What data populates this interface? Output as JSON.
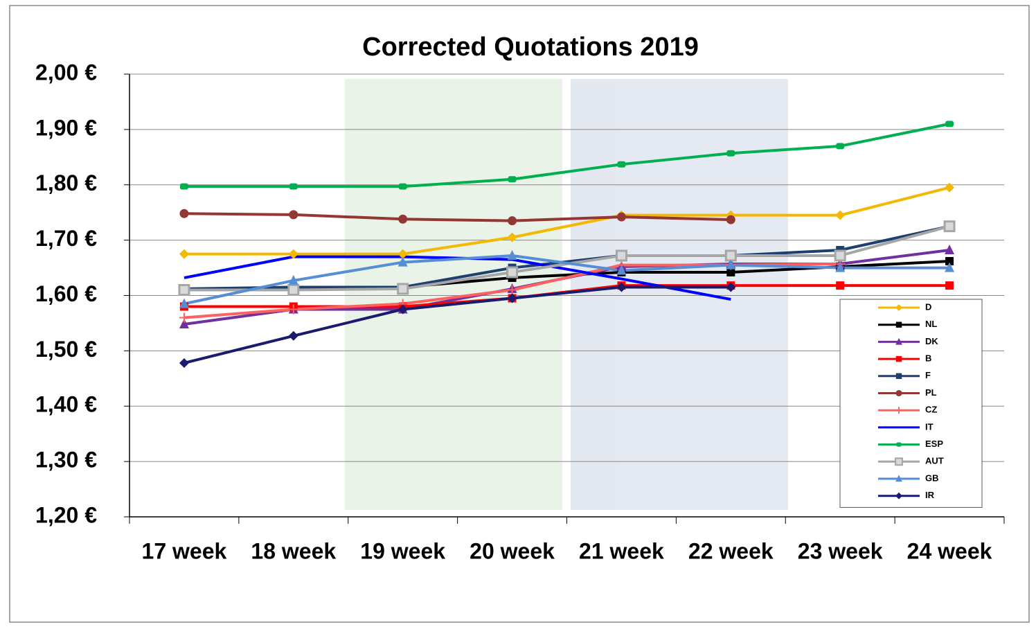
{
  "chart_data": {
    "type": "line",
    "title": "Corrected Quotations 2019",
    "categories": [
      "17 week",
      "18 week",
      "19 week",
      "20 week",
      "21 week",
      "22 week",
      "23 week",
      "24 week"
    ],
    "ylim": [
      1.2,
      2.0
    ],
    "yticks": [
      {
        "value": 1.2,
        "label": "1,20 €"
      },
      {
        "value": 1.3,
        "label": "1,30 €"
      },
      {
        "value": 1.4,
        "label": "1,40 €"
      },
      {
        "value": 1.5,
        "label": "1,50 €"
      },
      {
        "value": 1.6,
        "label": "1,60 €"
      },
      {
        "value": 1.7,
        "label": "1,70 €"
      },
      {
        "value": 1.8,
        "label": "1,80 €"
      },
      {
        "value": 1.9,
        "label": "1,90 €"
      },
      {
        "value": 2.0,
        "label": "2,00 €"
      }
    ],
    "grid": true,
    "legend": "lower right",
    "series": [
      {
        "name": "D",
        "color": "#f5b800",
        "marker": "diamond",
        "values": [
          1.675,
          1.675,
          1.675,
          1.705,
          1.745,
          1.745,
          1.745,
          1.795
        ]
      },
      {
        "name": "NL",
        "color": "#000000",
        "marker": "square",
        "values": [
          1.61,
          1.615,
          1.615,
          1.632,
          1.642,
          1.642,
          1.652,
          1.662
        ]
      },
      {
        "name": "DK",
        "color": "#7030a0",
        "marker": "triangle",
        "values": [
          1.548,
          1.575,
          1.575,
          1.612,
          1.652,
          1.657,
          1.657,
          1.682
        ]
      },
      {
        "name": "B",
        "color": "#ff0000",
        "marker": "square",
        "values": [
          1.58,
          1.58,
          1.58,
          1.595,
          1.618,
          1.618,
          1.618,
          1.618
        ]
      },
      {
        "name": "F",
        "color": "#1f3f6e",
        "marker": "square",
        "values": [
          1.612,
          1.615,
          1.615,
          1.65,
          1.672,
          1.672,
          1.682,
          1.725
        ]
      },
      {
        "name": "PL",
        "color": "#943634",
        "marker": "circle",
        "values": [
          1.748,
          1.746,
          1.738,
          1.735,
          1.742,
          1.737,
          null,
          null
        ]
      },
      {
        "name": "CZ",
        "color": "#ff6060",
        "marker": "plus",
        "values": [
          1.56,
          1.575,
          1.585,
          1.61,
          1.655,
          1.655,
          1.657,
          null
        ]
      },
      {
        "name": "IT",
        "color": "#0000ff",
        "marker": "none",
        "values": [
          1.632,
          1.67,
          1.67,
          1.665,
          1.63,
          1.593,
          null,
          null
        ]
      },
      {
        "name": "ESP",
        "color": "#00b050",
        "marker": "pill",
        "values": [
          1.797,
          1.797,
          1.797,
          1.81,
          1.837,
          1.857,
          1.87,
          1.91
        ]
      },
      {
        "name": "AUT",
        "color": "#a6a6a6",
        "marker": "bigsquare",
        "values": [
          1.61,
          1.61,
          1.612,
          1.642,
          1.672,
          1.672,
          1.672,
          1.725
        ]
      },
      {
        "name": "GB",
        "color": "#558ed5",
        "marker": "triangle",
        "values": [
          1.585,
          1.627,
          1.66,
          1.672,
          1.645,
          1.655,
          1.65,
          1.65
        ]
      },
      {
        "name": "IR",
        "color": "#1a1a6e",
        "marker": "diamond",
        "values": [
          1.478,
          1.527,
          1.575,
          1.595,
          1.615,
          1.615,
          null,
          null
        ]
      }
    ]
  }
}
